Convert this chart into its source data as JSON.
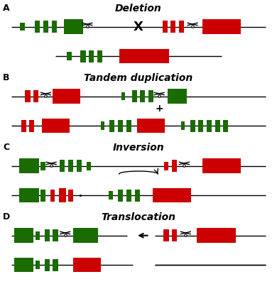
{
  "green": "#1a6b00",
  "red": "#cc0000",
  "black": "#000000",
  "white": "#ffffff",
  "bg": "#ffffff",
  "panel_labels": [
    "A",
    "B",
    "C",
    "D"
  ],
  "titles": [
    "Deletion",
    "Tandem duplication",
    "Inversion",
    "Translocation"
  ]
}
